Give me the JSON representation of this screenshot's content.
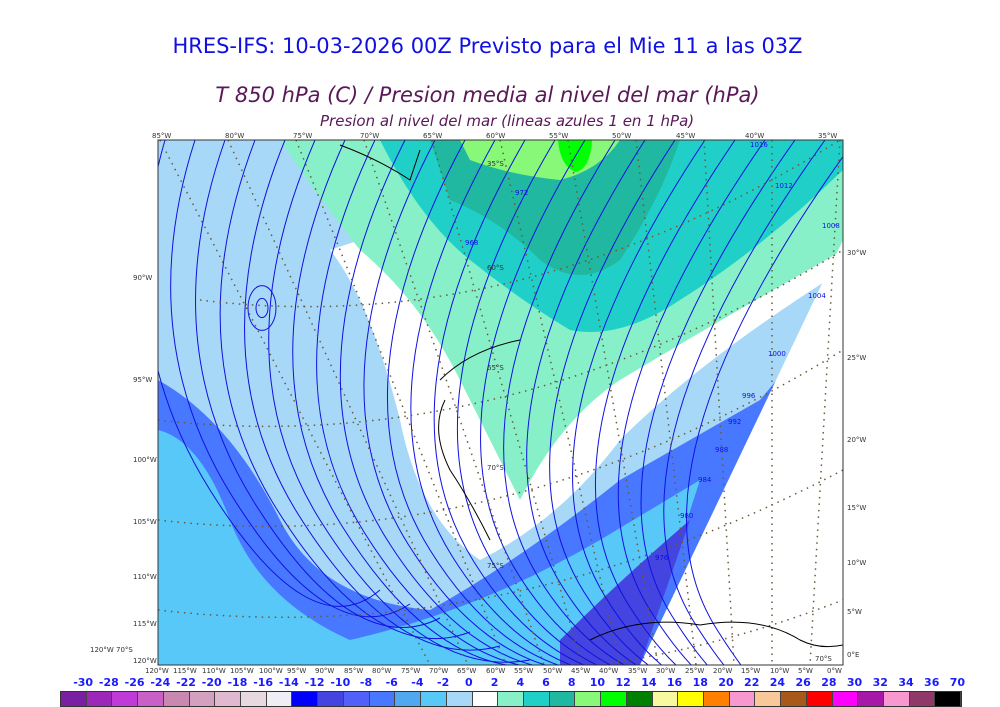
{
  "title": "HRES-IFS: 10-03-2026 00Z Previsto para el Mie 11 a las 03Z",
  "subtitle": "T 850 hPa (C) / Presion media al nivel del mar (hPa)",
  "subtitle2": "Presion al nivel del mar (lineas azules 1 en 1 hPa)",
  "top_axis": [
    "85°W",
    "80°W",
    "75°W",
    "70°W",
    "65°W",
    "60°W",
    "55°W",
    "50°W",
    "45°W",
    "40°W",
    "35°W"
  ],
  "left_axis": [
    "90°W",
    "95°W",
    "100°W",
    "105°W",
    "110°W",
    "115°W",
    "120°W"
  ],
  "right_axis": [
    "30°W",
    "25°W",
    "20°W",
    "15°W",
    "10°W",
    "5°W",
    "0°E"
  ],
  "bottom_axis": [
    "120°W",
    "115°W",
    "110°W",
    "105°W",
    "100°W",
    "95°W",
    "90°W",
    "85°W",
    "80°W",
    "75°W",
    "70°W",
    "65°W",
    "60°W",
    "55°W",
    "50°W",
    "45°W",
    "40°W",
    "35°W",
    "30°W",
    "25°W",
    "20°W",
    "15°W",
    "10°W",
    "5°W",
    "0°W"
  ],
  "corner_labels": {
    "bottom_left": "120°W 70°S",
    "bottom_right": "70°S"
  },
  "lat_labels": [
    "35°S",
    "60°S",
    "65°S",
    "70°S",
    "75°S"
  ],
  "isobar_labels": [
    "1016",
    "1012",
    "1008",
    "1004",
    "1000",
    "996",
    "992",
    "988",
    "984",
    "980",
    "976",
    "972",
    "968"
  ],
  "colorbar": {
    "labels": [
      "-30",
      "-28",
      "-26",
      "-24",
      "-22",
      "-20",
      "-18",
      "-16",
      "-14",
      "-12",
      "-10",
      "-8",
      "-6",
      "-4",
      "-2",
      "0",
      "2",
      "4",
      "6",
      "8",
      "10",
      "12",
      "14",
      "16",
      "18",
      "20",
      "22",
      "24",
      "26",
      "28",
      "30",
      "32",
      "34",
      "36",
      "70"
    ],
    "colors": [
      "#7b1fa2",
      "#9c27b8",
      "#c03ad8",
      "#c860c8",
      "#c888b0",
      "#d4a0c0",
      "#e0b8d0",
      "#e8d8e0",
      "#eeeef4",
      "#0000ff",
      "#4444e0",
      "#5060f8",
      "#4878ff",
      "#50a8f0",
      "#58c8f8",
      "#a8d8f8",
      "#ffffff",
      "#88f0c8",
      "#20d0c8",
      "#20b8a0",
      "#88f878",
      "#00ff00",
      "#008000",
      "#f8f8a0",
      "#ffff00",
      "#ff8000",
      "#f898d0",
      "#f8c898",
      "#a85818",
      "#ff0000",
      "#ff00ff",
      "#a818a8",
      "#f898d0",
      "#903868",
      "#000000"
    ]
  },
  "isobar_color": "#1010e0"
}
